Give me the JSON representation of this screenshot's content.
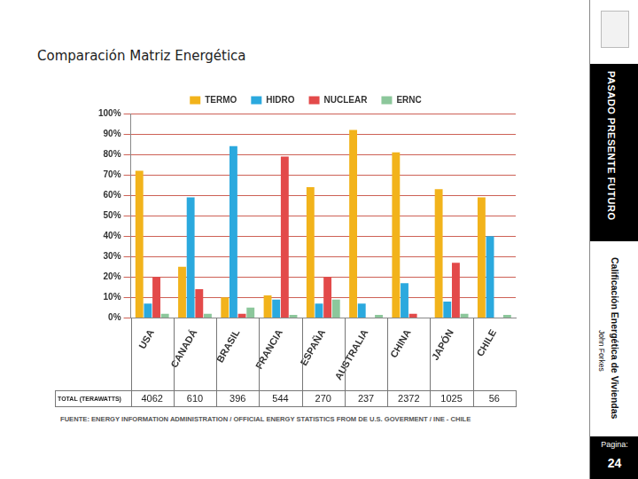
{
  "chart_data": {
    "type": "bar",
    "title": "Comparación Matriz Energética",
    "categories": [
      "USA",
      "CANADÁ",
      "BRASIL",
      "FRANCIA",
      "ESPAÑA",
      "AUSTRALIA",
      "CHINA",
      "JAPÓN",
      "CHILE"
    ],
    "series": [
      {
        "name": "TERMO",
        "color": "#f2b31b",
        "values": [
          72,
          25,
          10,
          11,
          64,
          92,
          81,
          63,
          59
        ]
      },
      {
        "name": "HIDRO",
        "color": "#2ba9de",
        "values": [
          7,
          59,
          84,
          9,
          7,
          7,
          17,
          8,
          40
        ]
      },
      {
        "name": "NUCLEAR",
        "color": "#e34a4a",
        "values": [
          20,
          14,
          2,
          79,
          20,
          0,
          2,
          27,
          0
        ]
      },
      {
        "name": "ERNC",
        "color": "#8cc79b",
        "values": [
          2,
          2,
          5,
          1.5,
          9,
          1.5,
          0,
          2,
          1.5
        ]
      }
    ],
    "ylim": [
      0,
      100
    ],
    "yticks": [
      {
        "value": 0,
        "label": "0%"
      },
      {
        "value": 10,
        "label": "10%"
      },
      {
        "value": 20,
        "label": "20%"
      },
      {
        "value": 30,
        "label": "30%"
      },
      {
        "value": 40,
        "label": "40%"
      },
      {
        "value": 50,
        "label": "50%"
      },
      {
        "value": 60,
        "label": "60%"
      },
      {
        "value": 70,
        "label": "70%"
      },
      {
        "value": 80,
        "label": "80%"
      },
      {
        "value": 90,
        "label": "90%"
      },
      {
        "value": 100,
        "label": "100%"
      }
    ],
    "grid": true,
    "legend": "top",
    "totals": {
      "label": "TOTAL (TERAWATTS)",
      "values": [
        4062,
        610,
        396,
        544,
        270,
        237,
        2372,
        1025,
        56
      ]
    },
    "source": "FUENTE: ENERGY INFORMATION ADMINISTRATION / OFFICIAL ENERGY STATISTICS FROM DE U.S. GOVERMENT / INE - CHILE"
  },
  "sidebar": {
    "header": "PASADO  PRESENTE  FUTURO",
    "subtitle": "Calificación Energética de Viviendas",
    "author": "John Forkes",
    "page_label": "Pagina:",
    "page_number": 24
  }
}
